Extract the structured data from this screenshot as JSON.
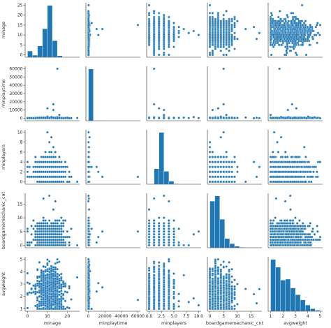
{
  "chart_data": {
    "type": "scatter",
    "kind": "pairplot",
    "variables": [
      "minage",
      "minplaytime",
      "minplayers",
      "boardgamemechanic_cnt",
      "avgweight"
    ],
    "axis_labels": [
      "minage",
      "minplaytime",
      "minplayers",
      "boardgamemechanic_cnt",
      "avgweight"
    ],
    "ranges": {
      "minage": [
        -1.2,
        26.2
      ],
      "minplaytime": [
        -3000,
        63000
      ],
      "minplayers": [
        -0.5,
        10.5
      ],
      "boardgamemechanic_cnt": [
        -0.9,
        18.9
      ],
      "avgweight": [
        0.8,
        5.2
      ]
    },
    "ticks": {
      "minage": [
        0,
        10,
        20
      ],
      "minplaytime": [
        0,
        20000,
        40000,
        60000
      ],
      "minplayers": [
        0.0,
        2.5,
        5.0,
        7.5,
        10.0
      ],
      "boardgamemechanic_cnt": [
        0,
        5,
        10,
        15
      ],
      "avgweight": [
        1,
        2,
        3,
        4,
        5
      ]
    },
    "tick_labels": {
      "minage": [
        "0",
        "10",
        "20"
      ],
      "minplaytime": [
        "0",
        "20000",
        "40000",
        "60000"
      ],
      "minplayers": [
        "0.0",
        "2.5",
        "5.0",
        "7.5",
        "10.0"
      ],
      "boardgamemechanic_cnt": [
        "0",
        "5",
        "10",
        "15"
      ],
      "avgweight": [
        "1",
        "2",
        "3",
        "4",
        "5"
      ]
    },
    "diag_ymax": [
      1.05,
      1.05,
      1.05,
      1.05,
      1.05
    ],
    "histograms": {
      "minage": {
        "edges": [
          0,
          2.5,
          5,
          7.5,
          10,
          12.5,
          15,
          17.5,
          20,
          22.5,
          25
        ],
        "counts": [
          0.12,
          0.04,
          0.22,
          0.55,
          1.0,
          0.32,
          0.03,
          0.005,
          0.0,
          0.0
        ]
      },
      "minplaytime": {
        "edges": [
          0,
          6000,
          12000,
          18000,
          24000,
          30000,
          36000,
          42000,
          48000,
          54000,
          60000
        ],
        "counts": [
          1.0,
          0.003,
          0.001,
          0.0,
          0.0,
          0.0,
          0.0,
          0.0,
          0.0,
          0.0
        ]
      },
      "minplayers": {
        "edges": [
          0,
          1,
          2,
          3,
          4,
          5,
          6,
          7,
          8,
          9,
          10
        ],
        "counts": [
          0.0,
          0.3,
          1.0,
          0.25,
          0.06,
          0.01,
          0.005,
          0.002,
          0.001,
          0.001
        ]
      },
      "boardgamemechanic_cnt": {
        "edges": [
          0,
          1.8,
          3.6,
          5.4,
          7.2,
          9,
          10.8,
          12.6,
          14.4,
          16.2,
          18
        ],
        "counts": [
          0.9,
          1.0,
          0.55,
          0.18,
          0.08,
          0.03,
          0.01,
          0.004,
          0.002,
          0.001
        ]
      },
      "avgweight": {
        "edges": [
          1,
          1.4,
          1.8,
          2.2,
          2.6,
          3,
          3.4,
          3.8,
          4.2,
          4.6,
          5
        ],
        "counts": [
          1.0,
          0.85,
          0.6,
          0.62,
          0.45,
          0.32,
          0.22,
          0.12,
          0.05,
          0.02
        ]
      }
    },
    "pairs": {
      "minage": {
        "center": 11,
        "spread": 3.5,
        "discrete": 1,
        "min": 0,
        "max": 25,
        "outliers": [
          0,
          25,
          21,
          18,
          1
        ]
      },
      "minplaytime": {
        "center": 200,
        "spread": 400,
        "discrete": 0,
        "min": 0,
        "max": 60000,
        "outliers": [
          60000,
          17000,
          10000,
          12000,
          2000,
          4000
        ]
      },
      "minplayers": {
        "center": 2,
        "spread": 1.3,
        "discrete": 1,
        "min": 0,
        "max": 10,
        "outliers": [
          10,
          9,
          8,
          7,
          0
        ]
      },
      "boardgamemechanic_cnt": {
        "center": 3,
        "spread": 2.8,
        "discrete": 1,
        "min": 0,
        "max": 18,
        "outliers": [
          18,
          17,
          16,
          0
        ]
      },
      "avgweight": {
        "center": 2.3,
        "spread": 0.9,
        "discrete": 0,
        "min": 1,
        "max": 5,
        "outliers": [
          1,
          5,
          4.8,
          1.2
        ]
      }
    },
    "point_color": "#1f77b4",
    "bar_color": "#1f77b4",
    "edge_color": "#ffffff",
    "grid": false,
    "legend": false
  }
}
